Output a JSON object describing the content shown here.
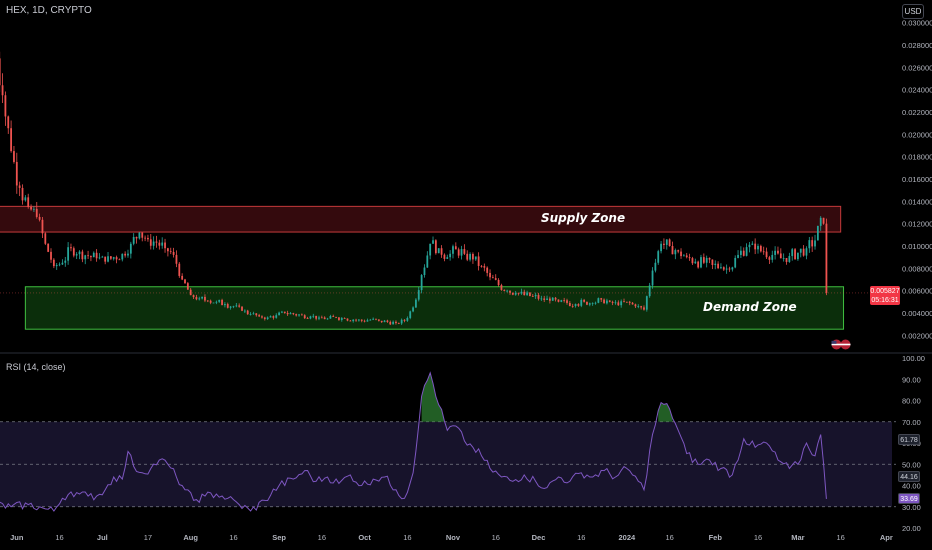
{
  "header": {
    "title": "HEX, 1D, CRYPTO"
  },
  "toolbar": {
    "currency_label": "USD"
  },
  "rsi_panel": {
    "title": "RSI (14, close)"
  },
  "colors": {
    "background": "#000000",
    "bull": "#26a69a",
    "bear": "#ef5350",
    "supply_fill": "#3d0c0f",
    "supply_border": "#c43a3a",
    "demand_fill": "#0c330c",
    "demand_border": "#3fbf3f",
    "rsi_line": "#7e57c2",
    "rsi_band": "#1a1530",
    "overbought_fill": "#2e7d32"
  },
  "chart_data": [
    {
      "type": "candlestick",
      "title": "HEX, 1D, CRYPTO",
      "ylim": [
        0.0007,
        0.03
      ],
      "yticks": [
        0.002,
        0.004,
        0.006,
        0.008,
        0.01,
        0.012,
        0.014,
        0.016,
        0.018,
        0.02,
        0.022,
        0.024,
        0.026,
        0.028,
        0.03
      ],
      "ytick_labels": [
        "0.002000",
        "0.004000",
        "0.006000",
        "0.008000",
        "0.010000",
        "0.012000",
        "0.014000",
        "0.016000",
        "0.018000",
        "0.020000",
        "0.022000",
        "0.024000",
        "0.026000",
        "0.028000",
        "0.030000"
      ],
      "x_start": "2023-05-24",
      "x_end": "2024-03-31",
      "xticks": [
        "2023-06-01",
        "2023-06-16",
        "2023-07-01",
        "2023-07-17",
        "2023-08-01",
        "2023-08-16",
        "2023-09-01",
        "2023-09-16",
        "2023-10-01",
        "2023-10-16",
        "2023-11-01",
        "2023-11-16",
        "2023-12-01",
        "2023-12-16",
        "2024-01-01",
        "2024-01-16",
        "2024-02-01",
        "2024-02-16",
        "2024-03-01",
        "2024-03-16",
        "2024-04-01"
      ],
      "xtick_labels": [
        "Jun",
        "16",
        "Jul",
        "17",
        "Aug",
        "16",
        "Sep",
        "16",
        "Oct",
        "16",
        "Nov",
        "16",
        "Dec",
        "16",
        "2024",
        "16",
        "Feb",
        "16",
        "Mar",
        "16",
        "Apr"
      ],
      "close_series": [
        [
          "2023-05-24",
          0.0285
        ],
        [
          "2023-05-27",
          0.0235
        ],
        [
          "2023-05-30",
          0.0185
        ],
        [
          "2023-06-02",
          0.0152
        ],
        [
          "2023-06-05",
          0.0135
        ],
        [
          "2023-06-08",
          0.0126
        ],
        [
          "2023-06-11",
          0.0102
        ],
        [
          "2023-06-14",
          0.0082
        ],
        [
          "2023-06-17",
          0.0085
        ],
        [
          "2023-06-20",
          0.0098
        ],
        [
          "2023-06-23",
          0.0095
        ],
        [
          "2023-06-26",
          0.0091
        ],
        [
          "2023-06-29",
          0.0089
        ],
        [
          "2023-07-02",
          0.0086
        ],
        [
          "2023-07-05",
          0.009
        ],
        [
          "2023-07-08",
          0.0093
        ],
        [
          "2023-07-11",
          0.0102
        ],
        [
          "2023-07-14",
          0.0112
        ],
        [
          "2023-07-17",
          0.0106
        ],
        [
          "2023-07-20",
          0.0103
        ],
        [
          "2023-07-23",
          0.0098
        ],
        [
          "2023-07-26",
          0.0092
        ],
        [
          "2023-07-29",
          0.007
        ],
        [
          "2023-08-01",
          0.0056
        ],
        [
          "2023-08-04",
          0.0053
        ],
        [
          "2023-08-07",
          0.0051
        ],
        [
          "2023-08-10",
          0.005
        ],
        [
          "2023-08-13",
          0.0048
        ],
        [
          "2023-08-16",
          0.0046
        ],
        [
          "2023-08-19",
          0.0042
        ],
        [
          "2023-08-22",
          0.0039
        ],
        [
          "2023-08-25",
          0.0037
        ],
        [
          "2023-08-28",
          0.0036
        ],
        [
          "2023-08-31",
          0.0038
        ],
        [
          "2023-09-03",
          0.004
        ],
        [
          "2023-09-06",
          0.0039
        ],
        [
          "2023-09-09",
          0.0038
        ],
        [
          "2023-09-12",
          0.0037
        ],
        [
          "2023-09-15",
          0.0036
        ],
        [
          "2023-09-18",
          0.0035
        ],
        [
          "2023-09-21",
          0.0036
        ],
        [
          "2023-09-24",
          0.0035
        ],
        [
          "2023-09-27",
          0.0034
        ],
        [
          "2023-09-30",
          0.0033
        ],
        [
          "2023-10-03",
          0.0034
        ],
        [
          "2023-10-06",
          0.0033
        ],
        [
          "2023-10-09",
          0.0032
        ],
        [
          "2023-10-12",
          0.0031
        ],
        [
          "2023-10-15",
          0.0033
        ],
        [
          "2023-10-18",
          0.0045
        ],
        [
          "2023-10-21",
          0.0074
        ],
        [
          "2023-10-24",
          0.0102
        ],
        [
          "2023-10-27",
          0.0098
        ],
        [
          "2023-10-30",
          0.009
        ],
        [
          "2023-11-02",
          0.0097
        ],
        [
          "2023-11-05",
          0.0093
        ],
        [
          "2023-11-08",
          0.0088
        ],
        [
          "2023-11-11",
          0.0082
        ],
        [
          "2023-11-14",
          0.0072
        ],
        [
          "2023-11-17",
          0.0065
        ],
        [
          "2023-11-20",
          0.006
        ],
        [
          "2023-11-23",
          0.0058
        ],
        [
          "2023-11-26",
          0.0056
        ],
        [
          "2023-11-29",
          0.0055
        ],
        [
          "2023-12-02",
          0.0053
        ],
        [
          "2023-12-05",
          0.0051
        ],
        [
          "2023-12-08",
          0.005
        ],
        [
          "2023-12-11",
          0.0049
        ],
        [
          "2023-12-14",
          0.0048
        ],
        [
          "2023-12-17",
          0.005
        ],
        [
          "2023-12-20",
          0.0049
        ],
        [
          "2023-12-23",
          0.0052
        ],
        [
          "2023-12-26",
          0.005
        ],
        [
          "2023-12-29",
          0.0047
        ],
        [
          "2024-01-01",
          0.005
        ],
        [
          "2024-01-04",
          0.0046
        ],
        [
          "2024-01-07",
          0.0043
        ],
        [
          "2024-01-10",
          0.0078
        ],
        [
          "2024-01-13",
          0.0102
        ],
        [
          "2024-01-16",
          0.01
        ],
        [
          "2024-01-19",
          0.0095
        ],
        [
          "2024-01-22",
          0.009
        ],
        [
          "2024-01-25",
          0.0086
        ],
        [
          "2024-01-28",
          0.0085
        ],
        [
          "2024-01-31",
          0.0083
        ],
        [
          "2024-02-03",
          0.0081
        ],
        [
          "2024-02-06",
          0.0079
        ],
        [
          "2024-02-09",
          0.0092
        ],
        [
          "2024-02-12",
          0.0099
        ],
        [
          "2024-02-15",
          0.0097
        ],
        [
          "2024-02-18",
          0.0095
        ],
        [
          "2024-02-21",
          0.0092
        ],
        [
          "2024-02-24",
          0.0089
        ],
        [
          "2024-02-27",
          0.0091
        ],
        [
          "2024-03-01",
          0.0094
        ],
        [
          "2024-03-04",
          0.0098
        ],
        [
          "2024-03-07",
          0.0105
        ],
        [
          "2024-03-08",
          0.0118
        ],
        [
          "2024-03-10",
          0.012
        ],
        [
          "2024-03-11",
          0.0058
        ]
      ],
      "last_price": "0.005827",
      "countdown": "05:16:31",
      "annotations": [
        {
          "label": "Supply Zone",
          "y_range": [
            0.01125,
            0.01355
          ],
          "x_range": [
            "2023-05-25",
            "2024-03-16"
          ]
        },
        {
          "label": "Demand Zone",
          "y_range": [
            0.00255,
            0.00635
          ],
          "x_range": [
            "2023-06-04",
            "2024-03-17"
          ]
        }
      ],
      "grid": false
    },
    {
      "type": "line",
      "title": "RSI (14, close)",
      "ylim": [
        20,
        100
      ],
      "yticks": [
        20,
        30,
        40,
        50,
        60,
        70,
        80,
        90,
        100
      ],
      "ytick_labels": [
        "20.00",
        "30.00",
        "40.00",
        "50.00",
        "60.00",
        "70.00",
        "80.00",
        "90.00",
        "100.00"
      ],
      "bands": [
        30,
        50,
        70
      ],
      "series": [
        {
          "values": [
            [
              "2023-05-24",
              31
            ],
            [
              "2023-05-30",
              30
            ],
            [
              "2023-06-05",
              31
            ],
            [
              "2023-06-11",
              29
            ],
            [
              "2023-06-14",
              28
            ],
            [
              "2023-06-17",
              34
            ],
            [
              "2023-06-20",
              37
            ],
            [
              "2023-06-23",
              36
            ],
            [
              "2023-06-26",
              35
            ],
            [
              "2023-06-29",
              35
            ],
            [
              "2023-07-02",
              38
            ],
            [
              "2023-07-05",
              44
            ],
            [
              "2023-07-08",
              43
            ],
            [
              "2023-07-10",
              56
            ],
            [
              "2023-07-12",
              49
            ],
            [
              "2023-07-15",
              46
            ],
            [
              "2023-07-18",
              48
            ],
            [
              "2023-07-21",
              52
            ],
            [
              "2023-07-24",
              50
            ],
            [
              "2023-07-27",
              44
            ],
            [
              "2023-07-30",
              38
            ],
            [
              "2023-08-02",
              33
            ],
            [
              "2023-08-06",
              35
            ],
            [
              "2023-08-10",
              36
            ],
            [
              "2023-08-14",
              34
            ],
            [
              "2023-08-18",
              31
            ],
            [
              "2023-08-22",
              28
            ],
            [
              "2023-08-27",
              33
            ],
            [
              "2023-09-01",
              40
            ],
            [
              "2023-09-06",
              43
            ],
            [
              "2023-09-10",
              47
            ],
            [
              "2023-09-14",
              42
            ],
            [
              "2023-09-18",
              44
            ],
            [
              "2023-09-22",
              41
            ],
            [
              "2023-09-26",
              45
            ],
            [
              "2023-09-30",
              40
            ],
            [
              "2023-10-04",
              43
            ],
            [
              "2023-10-08",
              44
            ],
            [
              "2023-10-12",
              38
            ],
            [
              "2023-10-15",
              34
            ],
            [
              "2023-10-18",
              46
            ],
            [
              "2023-10-21",
              82
            ],
            [
              "2023-10-24",
              93
            ],
            [
              "2023-10-27",
              78
            ],
            [
              "2023-10-30",
              66
            ],
            [
              "2023-11-02",
              68
            ],
            [
              "2023-11-05",
              61
            ],
            [
              "2023-11-08",
              58
            ],
            [
              "2023-11-11",
              54
            ],
            [
              "2023-11-14",
              48
            ],
            [
              "2023-11-18",
              44
            ],
            [
              "2023-11-22",
              42
            ],
            [
              "2023-11-26",
              45
            ],
            [
              "2023-11-30",
              42
            ],
            [
              "2023-12-04",
              39
            ],
            [
              "2023-12-08",
              44
            ],
            [
              "2023-12-12",
              42
            ],
            [
              "2023-12-16",
              46
            ],
            [
              "2023-12-20",
              44
            ],
            [
              "2023-12-24",
              47
            ],
            [
              "2023-12-28",
              44
            ],
            [
              "2024-01-01",
              48
            ],
            [
              "2024-01-05",
              42
            ],
            [
              "2024-01-07",
              38
            ],
            [
              "2024-01-10",
              64
            ],
            [
              "2024-01-13",
              79
            ],
            [
              "2024-01-16",
              76
            ],
            [
              "2024-01-19",
              66
            ],
            [
              "2024-01-22",
              55
            ],
            [
              "2024-01-26",
              50
            ],
            [
              "2024-01-30",
              52
            ],
            [
              "2024-02-03",
              48
            ],
            [
              "2024-02-07",
              45
            ],
            [
              "2024-02-11",
              62
            ],
            [
              "2024-02-15",
              58
            ],
            [
              "2024-02-19",
              60
            ],
            [
              "2024-02-23",
              52
            ],
            [
              "2024-02-27",
              48
            ],
            [
              "2024-03-01",
              50
            ],
            [
              "2024-03-04",
              60
            ],
            [
              "2024-03-07",
              54
            ],
            [
              "2024-03-09",
              64
            ],
            [
              "2024-03-11",
              33.69
            ]
          ]
        }
      ],
      "value_labels": [
        "61.78",
        "44.16",
        "33.69"
      ]
    }
  ]
}
